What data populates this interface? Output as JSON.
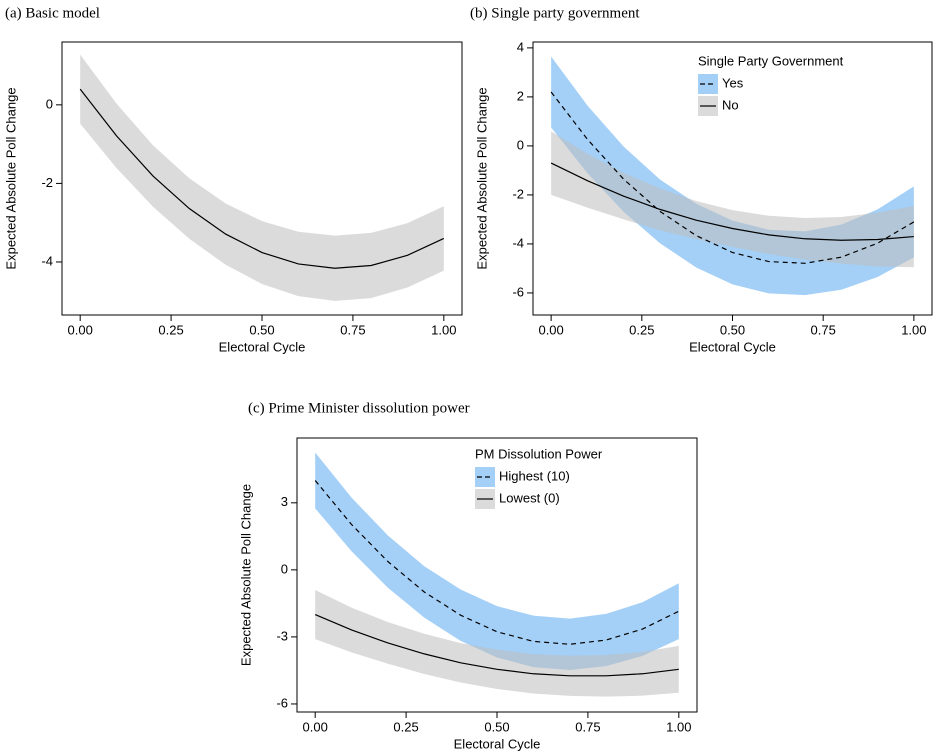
{
  "chart_data": [
    {
      "type": "line",
      "title": "(a) Basic model",
      "xlabel": "Electoral Cycle",
      "ylabel": "Expected Absolute Poll Change",
      "x": [
        0,
        0.1,
        0.2,
        0.3,
        0.4,
        0.5,
        0.6,
        0.7,
        0.8,
        0.9,
        1.0
      ],
      "series": [
        {
          "color": "#000000",
          "band_color": "#bdbdbd",
          "dashed": false,
          "values": [
            0.4,
            -0.79,
            -1.81,
            -2.64,
            -3.29,
            -3.76,
            -4.05,
            -4.16,
            -4.09,
            -3.83,
            -3.4
          ],
          "lower": [
            -0.48,
            -1.61,
            -2.59,
            -3.41,
            -4.07,
            -4.56,
            -4.87,
            -4.99,
            -4.92,
            -4.65,
            -4.22
          ],
          "upper": [
            1.28,
            0.03,
            -1.03,
            -1.87,
            -2.51,
            -2.96,
            -3.23,
            -3.33,
            -3.26,
            -3.01,
            -2.58
          ]
        }
      ],
      "xlim": [
        -0.05,
        1.05
      ],
      "ylim": [
        -5.35,
        1.6
      ],
      "xticks": [
        {
          "value": 0,
          "label": "0.00"
        },
        {
          "value": 0.25,
          "label": "0.25"
        },
        {
          "value": 0.5,
          "label": "0.50"
        },
        {
          "value": 0.75,
          "label": "0.75"
        },
        {
          "value": 1,
          "label": "1.00"
        }
      ],
      "yticks": [
        -4,
        -2,
        0
      ]
    },
    {
      "type": "line",
      "title": "(b) Single party government",
      "xlabel": "Electoral Cycle",
      "ylabel": "Expected Absolute Poll Change",
      "legend_title": "Single Party Government",
      "x": [
        0,
        0.1,
        0.2,
        0.3,
        0.4,
        0.5,
        0.6,
        0.7,
        0.8,
        0.9,
        1.0
      ],
      "series": [
        {
          "name": "Yes",
          "color": "#000000",
          "band_color": "#5aaaf0",
          "dashed": true,
          "values": [
            2.2,
            0.27,
            -1.36,
            -2.67,
            -3.66,
            -4.35,
            -4.72,
            -4.79,
            -4.54,
            -3.97,
            -3.1
          ],
          "lower": [
            0.75,
            -1.11,
            -2.69,
            -3.97,
            -4.96,
            -5.65,
            -6.02,
            -6.09,
            -5.87,
            -5.35,
            -4.55
          ],
          "upper": [
            3.65,
            1.65,
            -0.03,
            -1.37,
            -2.36,
            -3.05,
            -3.42,
            -3.49,
            -3.21,
            -2.59,
            -1.65
          ]
        },
        {
          "name": "No",
          "color": "#000000",
          "band_color": "#bdbdbd",
          "dashed": false,
          "values": [
            -0.7,
            -1.42,
            -2.05,
            -2.59,
            -3.03,
            -3.37,
            -3.63,
            -3.79,
            -3.85,
            -3.82,
            -3.7
          ],
          "lower": [
            -2.0,
            -2.52,
            -3.0,
            -3.44,
            -3.81,
            -4.12,
            -4.41,
            -4.64,
            -4.8,
            -4.92,
            -4.95
          ],
          "upper": [
            0.6,
            -0.32,
            -1.1,
            -1.74,
            -2.25,
            -2.62,
            -2.85,
            -2.94,
            -2.9,
            -2.72,
            -2.45
          ]
        }
      ],
      "xlim": [
        -0.05,
        1.05
      ],
      "ylim": [
        -6.9,
        4.24
      ],
      "xticks": [
        {
          "value": 0,
          "label": "0.00"
        },
        {
          "value": 0.25,
          "label": "0.25"
        },
        {
          "value": 0.5,
          "label": "0.50"
        },
        {
          "value": 0.75,
          "label": "0.75"
        },
        {
          "value": 1,
          "label": "1.00"
        }
      ],
      "yticks": [
        -6,
        -4,
        -2,
        0,
        2,
        4
      ]
    },
    {
      "type": "line",
      "title": "(c) Prime Minister dissolution power",
      "xlabel": "Electoral Cycle",
      "ylabel": "Expected Absolute Poll Change",
      "legend_title": "PM Dissolution Power",
      "x": [
        0,
        0.1,
        0.2,
        0.3,
        0.4,
        0.5,
        0.6,
        0.7,
        0.8,
        0.9,
        1.0
      ],
      "series": [
        {
          "name": "Highest (10)",
          "color": "#000000",
          "band_color": "#5aaaf0",
          "dashed": true,
          "values": [
            4.0,
            2.03,
            0.37,
            -0.99,
            -2.03,
            -2.77,
            -3.2,
            -3.33,
            -3.14,
            -2.65,
            -1.85
          ],
          "lower": [
            2.75,
            0.83,
            -0.8,
            -2.14,
            -3.18,
            -3.92,
            -4.35,
            -4.48,
            -4.31,
            -3.85,
            -3.1
          ],
          "upper": [
            5.25,
            3.23,
            1.54,
            0.16,
            -0.88,
            -1.62,
            -2.05,
            -2.18,
            -1.97,
            -1.45,
            -0.6
          ]
        },
        {
          "name": "Lowest (0)",
          "color": "#000000",
          "band_color": "#bdbdbd",
          "dashed": false,
          "values": [
            -2.0,
            -2.69,
            -3.27,
            -3.76,
            -4.16,
            -4.45,
            -4.65,
            -4.74,
            -4.74,
            -4.65,
            -4.45
          ],
          "lower": [
            -3.1,
            -3.69,
            -4.2,
            -4.66,
            -5.04,
            -5.33,
            -5.53,
            -5.64,
            -5.67,
            -5.63,
            -5.5
          ],
          "upper": [
            -0.9,
            -1.69,
            -2.34,
            -2.86,
            -3.28,
            -3.57,
            -3.77,
            -3.84,
            -3.81,
            -3.67,
            -3.4
          ]
        }
      ],
      "xlim": [
        -0.05,
        1.05
      ],
      "ylim": [
        -6.36,
        5.9
      ],
      "xticks": [
        {
          "value": 0,
          "label": "0.00"
        },
        {
          "value": 0.25,
          "label": "0.25"
        },
        {
          "value": 0.5,
          "label": "0.50"
        },
        {
          "value": 0.75,
          "label": "0.75"
        },
        {
          "value": 1,
          "label": "1.00"
        }
      ],
      "yticks": [
        -6,
        -3,
        0,
        3
      ]
    }
  ]
}
